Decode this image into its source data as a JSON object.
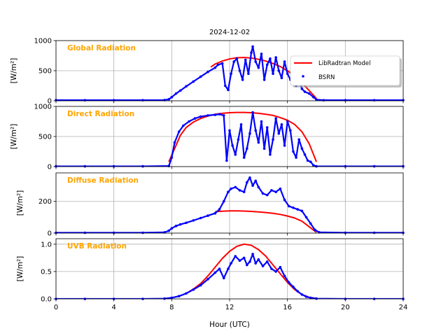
{
  "figure_title": "2024-12-02",
  "xlabel": "Hour (UTC)",
  "x_ticks": [
    "0",
    "4",
    "8",
    "12",
    "16",
    "20",
    "24"
  ],
  "colors": {
    "model": "#ff0000",
    "bsrn": "#0000ff",
    "panel_title": "#ffa500",
    "grid": "#b0b0b0"
  },
  "legend": {
    "model_label": "LibRadtran Model",
    "bsrn_label": "BSRN",
    "placement": "upper-right (Global Radiation panel)"
  },
  "chart_data": [
    {
      "type": "line",
      "title": "Global Radiation",
      "ylabel": "[W/m²]",
      "xlim": [
        0,
        24
      ],
      "ylim": [
        0,
        1000
      ],
      "yticks": [
        0,
        500,
        1000
      ],
      "grid": true,
      "series": [
        {
          "name": "LibRadtran Model",
          "style": "line",
          "x": [
            10.7,
            11.0,
            11.5,
            12.0,
            12.5,
            13.0,
            13.5,
            14.0,
            14.5,
            15.0,
            15.5,
            16.0,
            16.5,
            17.0,
            17.5,
            18.0
          ],
          "y": [
            560,
            610,
            660,
            695,
            715,
            720,
            710,
            690,
            660,
            620,
            570,
            500,
            410,
            300,
            170,
            40
          ]
        },
        {
          "name": "BSRN",
          "style": "points",
          "x": [
            0,
            2,
            4,
            6,
            7.5,
            7.8,
            8.0,
            8.3,
            8.6,
            9.0,
            9.5,
            10.0,
            10.5,
            11.0,
            11.2,
            11.5,
            11.7,
            11.9,
            12.1,
            12.3,
            12.5,
            12.7,
            12.9,
            13.1,
            13.3,
            13.5,
            13.6,
            13.8,
            14.0,
            14.2,
            14.4,
            14.6,
            14.8,
            15.0,
            15.2,
            15.4,
            15.6,
            15.8,
            16.0,
            16.2,
            16.4,
            16.6,
            16.8,
            17.0,
            17.2,
            17.5,
            17.8,
            18.0,
            18.5,
            20,
            22,
            24
          ],
          "y": [
            10,
            10,
            10,
            10,
            12,
            25,
            60,
            120,
            170,
            240,
            320,
            400,
            480,
            550,
            600,
            620,
            250,
            180,
            450,
            650,
            700,
            500,
            350,
            680,
            450,
            800,
            900,
            650,
            550,
            780,
            350,
            600,
            700,
            450,
            720,
            500,
            380,
            650,
            450,
            350,
            520,
            250,
            350,
            200,
            150,
            120,
            60,
            20,
            10,
            10,
            10,
            10
          ]
        }
      ]
    },
    {
      "type": "line",
      "title": "Direct Radiation",
      "ylabel": "[W/m²]",
      "xlim": [
        0,
        24
      ],
      "ylim": [
        0,
        1000
      ],
      "yticks": [
        0,
        500,
        1000
      ],
      "grid": true,
      "series": [
        {
          "name": "LibRadtran Model",
          "style": "line",
          "x": [
            7.8,
            8.2,
            8.6,
            9.0,
            9.5,
            10.0,
            10.5,
            11.0,
            11.5,
            12.0,
            12.5,
            13.0,
            13.5,
            14.0,
            14.5,
            15.0,
            15.5,
            16.0,
            16.5,
            17.0,
            17.5,
            17.8,
            18.0
          ],
          "y": [
            80,
            300,
            520,
            650,
            740,
            800,
            840,
            870,
            885,
            895,
            900,
            900,
            895,
            885,
            870,
            850,
            815,
            770,
            700,
            580,
            380,
            200,
            80
          ]
        },
        {
          "name": "BSRN",
          "style": "points",
          "x": [
            0,
            2,
            4,
            6,
            7.8,
            8.0,
            8.2,
            8.5,
            8.8,
            9.2,
            9.6,
            10.0,
            10.5,
            11.0,
            11.3,
            11.6,
            11.8,
            12.0,
            12.2,
            12.4,
            12.6,
            12.8,
            13.0,
            13.2,
            13.4,
            13.6,
            13.8,
            14.0,
            14.2,
            14.4,
            14.6,
            14.8,
            15.0,
            15.2,
            15.4,
            15.6,
            15.8,
            16.0,
            16.2,
            16.4,
            16.6,
            16.8,
            17.0,
            17.2,
            17.4,
            17.6,
            17.8,
            18.0,
            20,
            22,
            24
          ],
          "y": [
            5,
            5,
            5,
            5,
            10,
            150,
            400,
            580,
            680,
            750,
            800,
            830,
            850,
            860,
            870,
            850,
            100,
            600,
            350,
            200,
            450,
            700,
            150,
            300,
            550,
            900,
            600,
            400,
            750,
            300,
            650,
            200,
            450,
            800,
            550,
            700,
            350,
            750,
            600,
            250,
            150,
            450,
            300,
            200,
            100,
            80,
            20,
            5,
            5,
            5,
            5
          ]
        }
      ]
    },
    {
      "type": "line",
      "title": "Diffuse Radiation",
      "ylabel": "[W/m²]",
      "xlim": [
        0,
        24
      ],
      "ylim": [
        0,
        380
      ],
      "yticks": [
        0,
        200
      ],
      "grid": true,
      "series": [
        {
          "name": "LibRadtran Model",
          "style": "line",
          "x": [
            11.0,
            11.5,
            12.0,
            12.5,
            13.0,
            13.5,
            14.0,
            14.5,
            15.0,
            15.5,
            16.0,
            16.5,
            17.0,
            17.5,
            18.0
          ],
          "y": [
            135,
            138,
            140,
            140,
            139,
            137,
            134,
            130,
            125,
            118,
            108,
            95,
            75,
            40,
            5
          ]
        },
        {
          "name": "BSRN",
          "style": "points",
          "x": [
            0,
            2,
            4,
            6,
            7.5,
            7.8,
            8.0,
            8.3,
            8.6,
            9.0,
            9.5,
            10.0,
            10.5,
            11.0,
            11.3,
            11.6,
            11.9,
            12.1,
            12.4,
            12.7,
            13.0,
            13.2,
            13.4,
            13.6,
            13.8,
            14.0,
            14.3,
            14.6,
            14.9,
            15.2,
            15.5,
            15.8,
            16.1,
            16.4,
            16.7,
            17.0,
            17.3,
            17.6,
            17.9,
            18.2,
            20,
            22,
            24
          ],
          "y": [
            2,
            2,
            2,
            2,
            5,
            15,
            30,
            45,
            55,
            65,
            80,
            95,
            110,
            125,
            150,
            200,
            260,
            280,
            290,
            270,
            260,
            320,
            350,
            300,
            330,
            290,
            250,
            240,
            270,
            260,
            280,
            210,
            170,
            160,
            150,
            140,
            100,
            60,
            20,
            5,
            2,
            2,
            2
          ]
        }
      ]
    },
    {
      "type": "line",
      "title": "UVB Radiation",
      "ylabel": "[W/m²]",
      "xlim": [
        0,
        24
      ],
      "ylim": [
        0,
        1.1
      ],
      "yticks": [
        0.0,
        0.5,
        1.0
      ],
      "grid": true,
      "series": [
        {
          "name": "LibRadtran Model",
          "style": "line",
          "x": [
            7.5,
            8.0,
            8.5,
            9.0,
            9.5,
            10.0,
            10.5,
            11.0,
            11.5,
            12.0,
            12.5,
            13.0,
            13.5,
            14.0,
            14.5,
            15.0,
            15.5,
            16.0,
            16.5,
            17.0,
            17.5,
            18.0
          ],
          "y": [
            0.0,
            0.02,
            0.05,
            0.1,
            0.18,
            0.28,
            0.42,
            0.58,
            0.74,
            0.87,
            0.96,
            1.0,
            0.98,
            0.9,
            0.78,
            0.62,
            0.46,
            0.3,
            0.17,
            0.08,
            0.03,
            0.01
          ]
        },
        {
          "name": "BSRN",
          "style": "points",
          "x": [
            0,
            2,
            4,
            6,
            7.5,
            8.0,
            8.5,
            9.0,
            9.5,
            10.0,
            10.5,
            11.0,
            11.3,
            11.6,
            11.9,
            12.1,
            12.4,
            12.7,
            13.0,
            13.2,
            13.4,
            13.6,
            13.8,
            14.0,
            14.3,
            14.6,
            14.9,
            15.2,
            15.5,
            15.8,
            16.1,
            16.4,
            16.7,
            17.0,
            17.3,
            17.6,
            18.0,
            20,
            22,
            24
          ],
          "y": [
            0,
            0,
            0,
            0,
            0.005,
            0.02,
            0.05,
            0.1,
            0.17,
            0.25,
            0.36,
            0.48,
            0.55,
            0.38,
            0.55,
            0.65,
            0.78,
            0.7,
            0.75,
            0.62,
            0.68,
            0.82,
            0.65,
            0.72,
            0.6,
            0.68,
            0.55,
            0.5,
            0.58,
            0.42,
            0.3,
            0.22,
            0.14,
            0.08,
            0.04,
            0.02,
            0.005,
            0,
            0,
            0
          ]
        }
      ]
    }
  ]
}
